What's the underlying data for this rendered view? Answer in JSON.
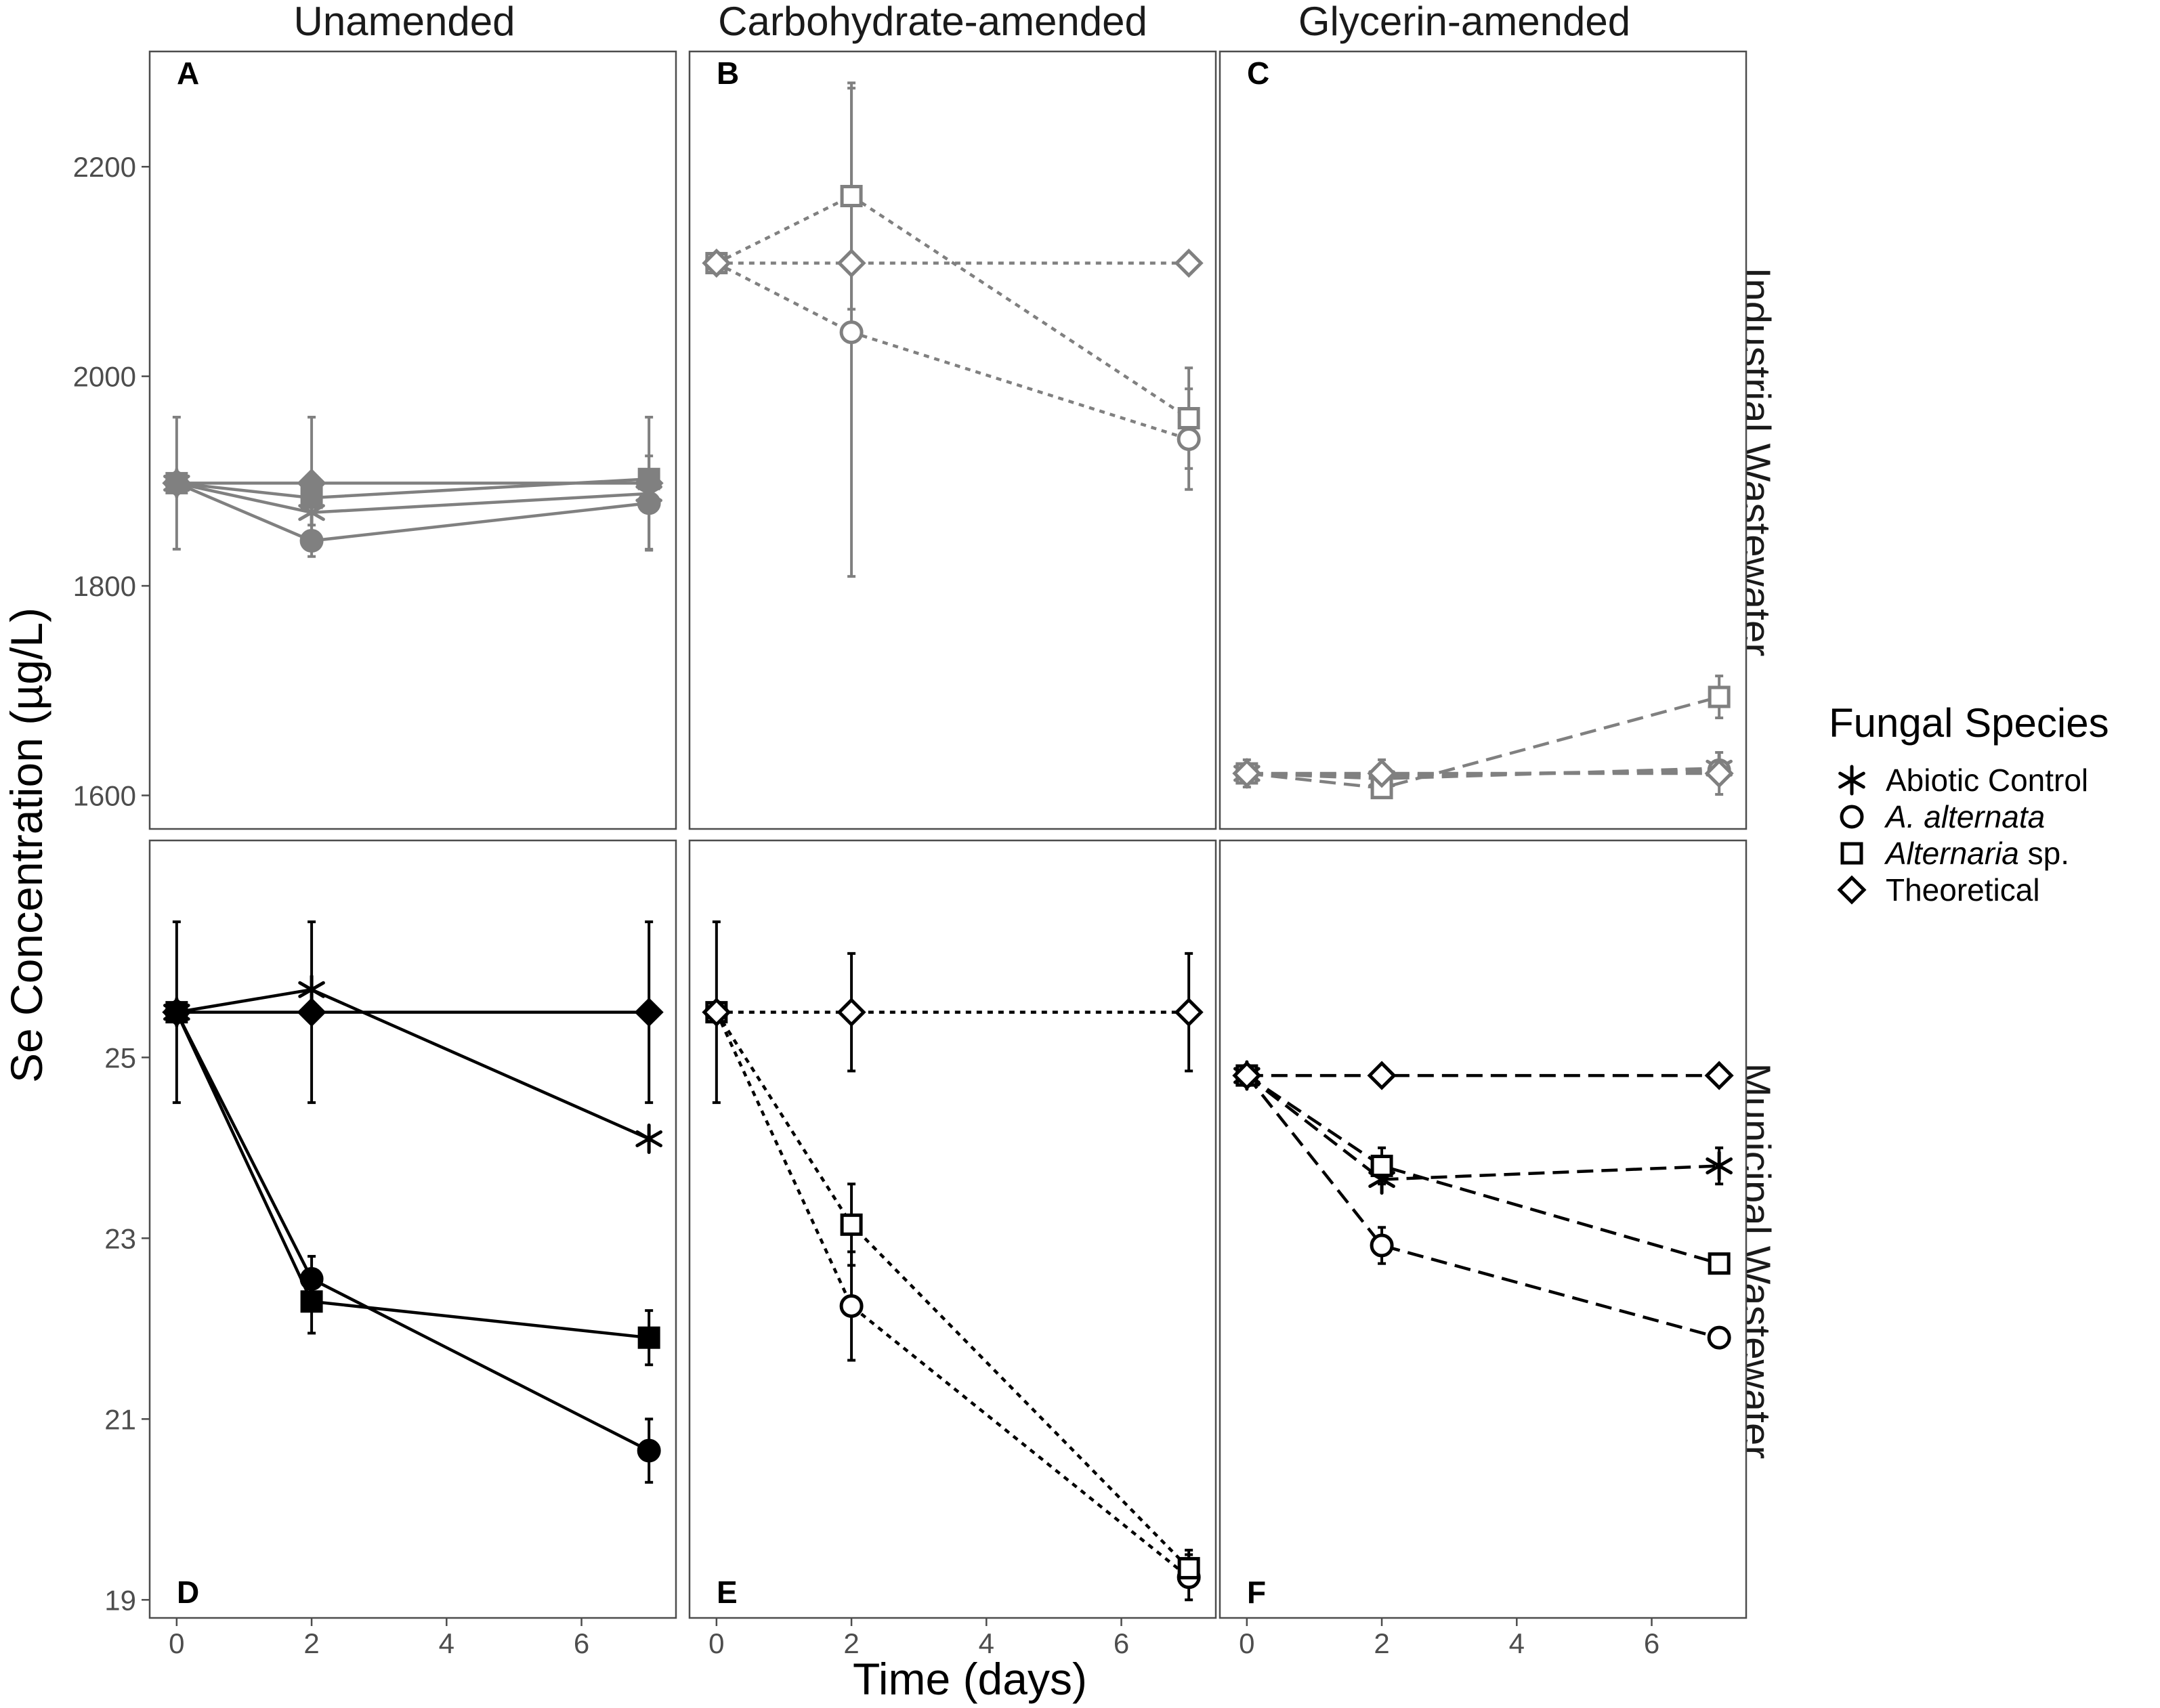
{
  "chart_data": {
    "type": "line",
    "xlabel": "Time (days)",
    "ylabel": "Se Concentration (µg/L)",
    "column_strips": [
      "Unamended",
      "Carbohydrate-amended",
      "Glycerin-amended"
    ],
    "row_strips": [
      "Industrial Wastewater",
      "Municipal Wastewater"
    ],
    "x_ticks": [
      0,
      2,
      4,
      6
    ],
    "xlim": [
      -0.4,
      7.4
    ],
    "legend": {
      "title": "Fungal Species",
      "position": "right",
      "entries": [
        {
          "key": "abiotic",
          "label": "Abiotic Control",
          "italic": "",
          "suffix": "",
          "symbol": "asterisk"
        },
        {
          "key": "aalt",
          "label": "",
          "italic": "A. alternata",
          "suffix": "",
          "symbol": "circle"
        },
        {
          "key": "asp",
          "label": "",
          "italic": "Alternaria",
          "suffix": " sp.",
          "symbol": "square"
        },
        {
          "key": "theo",
          "label": "Theoretical",
          "italic": "",
          "suffix": "",
          "symbol": "diamond"
        }
      ]
    },
    "rows": [
      {
        "name": "Industrial Wastewater",
        "ylim": [
          1568,
          2310
        ],
        "y_ticks": [
          1600,
          1800,
          2000,
          2200
        ],
        "color": "#808080"
      },
      {
        "name": "Municipal Wastewater",
        "ylim": [
          18.8,
          27.4
        ],
        "y_ticks": [
          19,
          21,
          23,
          25
        ],
        "color": "#000000"
      }
    ],
    "panels": [
      {
        "letter": "A",
        "row": 0,
        "col": 0,
        "fill": "solid",
        "linestyle": "solid",
        "letter_pos": "top",
        "series": [
          {
            "key": "abiotic",
            "x": [
              0,
              2,
              7
            ],
            "y": [
              1898,
              1870,
              1888
            ],
            "err": [
              0,
              0,
              0
            ]
          },
          {
            "key": "aalt",
            "x": [
              0,
              2,
              7
            ],
            "y": [
              1898,
              1843,
              1879
            ],
            "err": [
              0,
              15,
              45
            ]
          },
          {
            "key": "asp",
            "x": [
              0,
              2,
              7
            ],
            "y": [
              1898,
              1884,
              1902
            ],
            "err": [
              0,
              0,
              0
            ]
          },
          {
            "key": "theo",
            "x": [
              0,
              2,
              7
            ],
            "y": [
              1898,
              1898,
              1898
            ],
            "err": [
              63,
              63,
              63
            ]
          }
        ]
      },
      {
        "letter": "B",
        "row": 0,
        "col": 1,
        "fill": "open",
        "linestyle": "dotted",
        "letter_pos": "top",
        "series": [
          {
            "key": "aalt",
            "x": [
              0,
              2,
              7
            ],
            "y": [
              2108,
              2042,
              1940
            ],
            "err": [
              0,
              233,
              48
            ]
          },
          {
            "key": "asp",
            "x": [
              0,
              2,
              7
            ],
            "y": [
              2108,
              2172,
              1960
            ],
            "err": [
              0,
              108,
              48
            ]
          },
          {
            "key": "theo",
            "x": [
              0,
              2,
              7
            ],
            "y": [
              2108,
              2108,
              2108
            ],
            "err": [
              0,
              0,
              0
            ]
          }
        ]
      },
      {
        "letter": "C",
        "row": 0,
        "col": 2,
        "fill": "open",
        "linestyle": "dashed",
        "letter_pos": "top",
        "series": [
          {
            "key": "abiotic",
            "x": [
              0,
              2,
              7
            ],
            "y": [
              1621,
              1616,
              1626
            ],
            "err": [
              0,
              0,
              0
            ]
          },
          {
            "key": "aalt",
            "x": [
              0,
              2,
              7
            ],
            "y": [
              1621,
              1619,
              1624
            ],
            "err": [
              0,
              0,
              0
            ]
          },
          {
            "key": "asp",
            "x": [
              0,
              2,
              7
            ],
            "y": [
              1621,
              1607,
              1694
            ],
            "err": [
              0,
              0,
              20
            ]
          },
          {
            "key": "theo",
            "x": [
              0,
              2,
              7
            ],
            "y": [
              1621,
              1621,
              1621
            ],
            "err": [
              13,
              13,
              20
            ]
          }
        ]
      },
      {
        "letter": "D",
        "row": 1,
        "col": 0,
        "fill": "solid",
        "linestyle": "solid",
        "letter_pos": "bottom",
        "series": [
          {
            "key": "abiotic",
            "x": [
              0,
              2,
              7
            ],
            "y": [
              25.5,
              25.75,
              24.1
            ],
            "err": [
              0,
              0,
              0
            ]
          },
          {
            "key": "aalt",
            "x": [
              0,
              2,
              7
            ],
            "y": [
              25.5,
              22.55,
              20.65
            ],
            "err": [
              0,
              0.25,
              0.35
            ]
          },
          {
            "key": "asp",
            "x": [
              0,
              2,
              7
            ],
            "y": [
              25.5,
              22.3,
              21.9
            ],
            "err": [
              0,
              0.35,
              0.3
            ]
          },
          {
            "key": "theo",
            "x": [
              0,
              2,
              7
            ],
            "y": [
              25.5,
              25.5,
              25.5
            ],
            "err": [
              1.0,
              1.0,
              1.0
            ]
          }
        ]
      },
      {
        "letter": "E",
        "row": 1,
        "col": 1,
        "fill": "open",
        "linestyle": "dotted",
        "letter_pos": "bottom",
        "series": [
          {
            "key": "aalt",
            "x": [
              0,
              2,
              7
            ],
            "y": [
              25.5,
              22.25,
              19.25
            ],
            "err": [
              0,
              0.6,
              0.25
            ]
          },
          {
            "key": "asp",
            "x": [
              0,
              2,
              7
            ],
            "y": [
              25.5,
              23.15,
              19.35
            ],
            "err": [
              0,
              0.45,
              0.2
            ]
          },
          {
            "key": "theo",
            "x": [
              0,
              2,
              7
            ],
            "y": [
              25.5,
              25.5,
              25.5
            ],
            "err": [
              1.0,
              0.65,
              0.65
            ]
          }
        ]
      },
      {
        "letter": "F",
        "row": 1,
        "col": 2,
        "fill": "open",
        "linestyle": "dashed",
        "letter_pos": "bottom",
        "series": [
          {
            "key": "abiotic",
            "x": [
              0,
              2,
              7
            ],
            "y": [
              24.8,
              23.65,
              23.8
            ],
            "err": [
              0,
              0,
              0.2
            ]
          },
          {
            "key": "aalt",
            "x": [
              0,
              2,
              7
            ],
            "y": [
              24.8,
              22.92,
              21.9
            ],
            "err": [
              0,
              0.2,
              0
            ]
          },
          {
            "key": "asp",
            "x": [
              0,
              2,
              7
            ],
            "y": [
              24.8,
              23.8,
              22.72
            ],
            "err": [
              0,
              0.2,
              0
            ]
          },
          {
            "key": "theo",
            "x": [
              0,
              2,
              7
            ],
            "y": [
              24.8,
              24.8,
              24.8
            ],
            "err": [
              0,
              0,
              0
            ]
          }
        ]
      }
    ]
  }
}
